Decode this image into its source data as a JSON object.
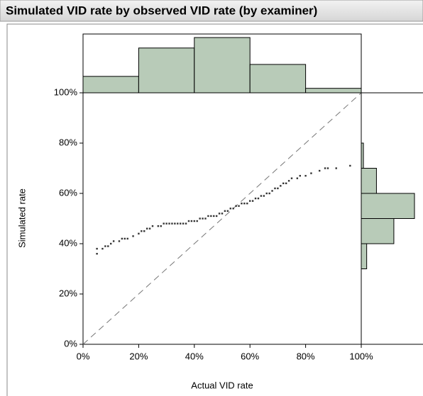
{
  "chart_data": [
    {
      "type": "scatter",
      "title": "Simulated VID rate by observed VID rate (by examiner)",
      "x_label": "Actual VID rate",
      "y_label": "Simulated rate",
      "color": "#333333",
      "x": [
        5,
        5,
        7,
        8,
        9,
        10,
        11,
        13,
        14,
        15,
        16,
        18,
        20,
        21,
        22,
        23,
        24,
        25,
        27,
        28,
        29,
        30,
        31,
        32,
        33,
        34,
        35,
        36,
        37,
        38,
        39,
        40,
        41,
        42,
        43,
        44,
        45,
        46,
        47,
        48,
        49,
        50,
        51,
        52,
        53,
        54,
        55,
        56,
        57,
        58,
        59,
        60,
        61,
        62,
        63,
        64,
        65,
        66,
        67,
        68,
        69,
        70,
        71,
        72,
        73,
        74,
        75,
        77,
        78,
        80,
        82,
        85,
        87,
        88,
        91,
        96
      ],
      "y": [
        36,
        38,
        38,
        39,
        39,
        40,
        41,
        41,
        42,
        42,
        42,
        43,
        44,
        45,
        45,
        46,
        46,
        47,
        47,
        47,
        48,
        48,
        48,
        48,
        48,
        48,
        48,
        48,
        48,
        49,
        49,
        49,
        49,
        50,
        50,
        50,
        51,
        51,
        51,
        51,
        52,
        52,
        53,
        53,
        54,
        54,
        55,
        55,
        56,
        56,
        56,
        57,
        57,
        58,
        58,
        59,
        59,
        60,
        60,
        61,
        62,
        62,
        63,
        64,
        64,
        65,
        66,
        66,
        67,
        67,
        68,
        69,
        70,
        70,
        70,
        71
      ],
      "xlim": [
        0,
        100
      ],
      "ylim": [
        0,
        100
      ],
      "xticks": [
        {
          "value": 0,
          "label": "0%"
        },
        {
          "value": 20,
          "label": "20%"
        },
        {
          "value": 40,
          "label": "40%"
        },
        {
          "value": 60,
          "label": "60%"
        },
        {
          "value": 80,
          "label": "80%"
        },
        {
          "value": 100,
          "label": "100%"
        }
      ],
      "yticks": [
        {
          "value": 0,
          "label": "0%"
        },
        {
          "value": 20,
          "label": "20%"
        },
        {
          "value": 40,
          "label": "40%"
        },
        {
          "value": 60,
          "label": "60%"
        },
        {
          "value": 80,
          "label": "80%"
        },
        {
          "value": 100,
          "label": "100%"
        }
      ],
      "reference_line": "dashed"
    },
    {
      "type": "histogram",
      "orientation": "vertical",
      "bins": [
        0,
        20,
        40,
        60,
        80,
        100
      ],
      "values": [
        11,
        30,
        37,
        19,
        3
      ],
      "color": "#b8cbb8"
    },
    {
      "type": "histogram",
      "orientation": "horizontal",
      "bins": [
        30,
        40,
        50,
        60,
        70,
        80
      ],
      "values": [
        5,
        30,
        49,
        14,
        2
      ],
      "color": "#b8cbb8"
    }
  ]
}
